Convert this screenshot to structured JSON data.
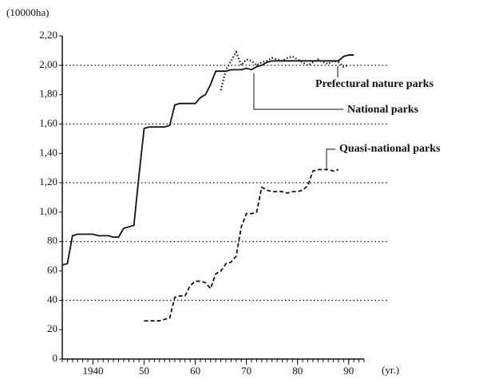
{
  "chart_data": {
    "type": "line",
    "y_label": "(10000ha)",
    "x_label": "(yr.)",
    "xlim": [
      1934,
      1993
    ],
    "xticks": [
      1940,
      {
        "value": 1950,
        "label": "50"
      },
      {
        "value": 1960,
        "label": "60"
      },
      {
        "value": 1970,
        "label": "70"
      },
      {
        "value": 1980,
        "label": "80"
      },
      {
        "value": 1990,
        "label": "90"
      }
    ],
    "ylim": [
      0,
      220
    ],
    "yticks": [
      0,
      20,
      40,
      60,
      80,
      {
        "value": 100,
        "label": "1,00"
      },
      {
        "value": 120,
        "label": "1,20"
      },
      {
        "value": 140,
        "label": "1,40"
      },
      {
        "value": 160,
        "label": "1,60"
      },
      {
        "value": 180,
        "label": "1,80"
      },
      {
        "value": 200,
        "label": "2,00"
      },
      {
        "value": 220,
        "label": "2,20"
      }
    ],
    "grid_lines": [
      40,
      80,
      120,
      160,
      200
    ],
    "series": [
      {
        "name": "National parks",
        "color": "#111111",
        "dash": "solid",
        "x": [
          1934,
          1935,
          1936,
          1937,
          1938,
          1939,
          1940,
          1941,
          1942,
          1943,
          1944,
          1945,
          1946,
          1947,
          1948,
          1949,
          1950,
          1951,
          1952,
          1953,
          1954,
          1955,
          1956,
          1957,
          1958,
          1959,
          1960,
          1961,
          1962,
          1963,
          1964,
          1965,
          1966,
          1967,
          1968,
          1969,
          1970,
          1971,
          1972,
          1973,
          1974,
          1975,
          1976,
          1977,
          1978,
          1979,
          1980,
          1981,
          1982,
          1983,
          1984,
          1985,
          1986,
          1987,
          1988,
          1989,
          1990,
          1991
        ],
        "values": [
          64,
          65,
          84,
          85,
          85,
          85,
          85,
          84,
          84,
          84,
          83,
          83,
          89,
          90,
          91,
          125,
          157,
          158,
          158,
          158,
          158,
          159,
          173,
          174,
          174,
          174,
          174,
          178,
          180,
          187,
          196,
          196,
          196,
          197,
          197,
          197,
          198,
          197,
          199,
          200,
          202,
          203,
          203,
          203,
          203,
          203,
          203,
          203,
          203,
          203,
          203,
          203,
          203,
          203,
          203,
          206,
          207,
          207
        ]
      },
      {
        "name": "Quasi-national parks",
        "color": "#111111",
        "dash": "dashed",
        "x": [
          1950,
          1951,
          1952,
          1953,
          1954,
          1955,
          1956,
          1957,
          1958,
          1959,
          1960,
          1961,
          1962,
          1963,
          1964,
          1965,
          1966,
          1967,
          1968,
          1969,
          1970,
          1971,
          1972,
          1973,
          1974,
          1975,
          1976,
          1977,
          1978,
          1979,
          1980,
          1981,
          1982,
          1983,
          1984,
          1985,
          1986,
          1987,
          1988
        ],
        "values": [
          26,
          26,
          26,
          26,
          27,
          28,
          42,
          43,
          43,
          50,
          53,
          53,
          52,
          48,
          58,
          60,
          65,
          66,
          70,
          90,
          99,
          99,
          100,
          117,
          115,
          114,
          114,
          114,
          113,
          114,
          114,
          115,
          118,
          128,
          129,
          129,
          129,
          128,
          129
        ]
      },
      {
        "name": "Prefectural nature parks",
        "color": "#111111",
        "dash": "dotted",
        "x": [
          1965,
          1966,
          1967,
          1968,
          1969,
          1970,
          1971,
          1972,
          1973,
          1974,
          1975,
          1976,
          1977,
          1978,
          1979,
          1980,
          1981,
          1982,
          1983,
          1984,
          1985,
          1986,
          1987,
          1988,
          1989,
          1990
        ],
        "values": [
          183,
          197,
          203,
          209,
          200,
          204,
          203,
          200,
          202,
          203,
          205,
          204,
          203,
          205,
          206,
          204,
          202,
          200,
          202,
          204,
          202,
          201,
          203,
          202,
          199,
          200
        ]
      }
    ]
  }
}
